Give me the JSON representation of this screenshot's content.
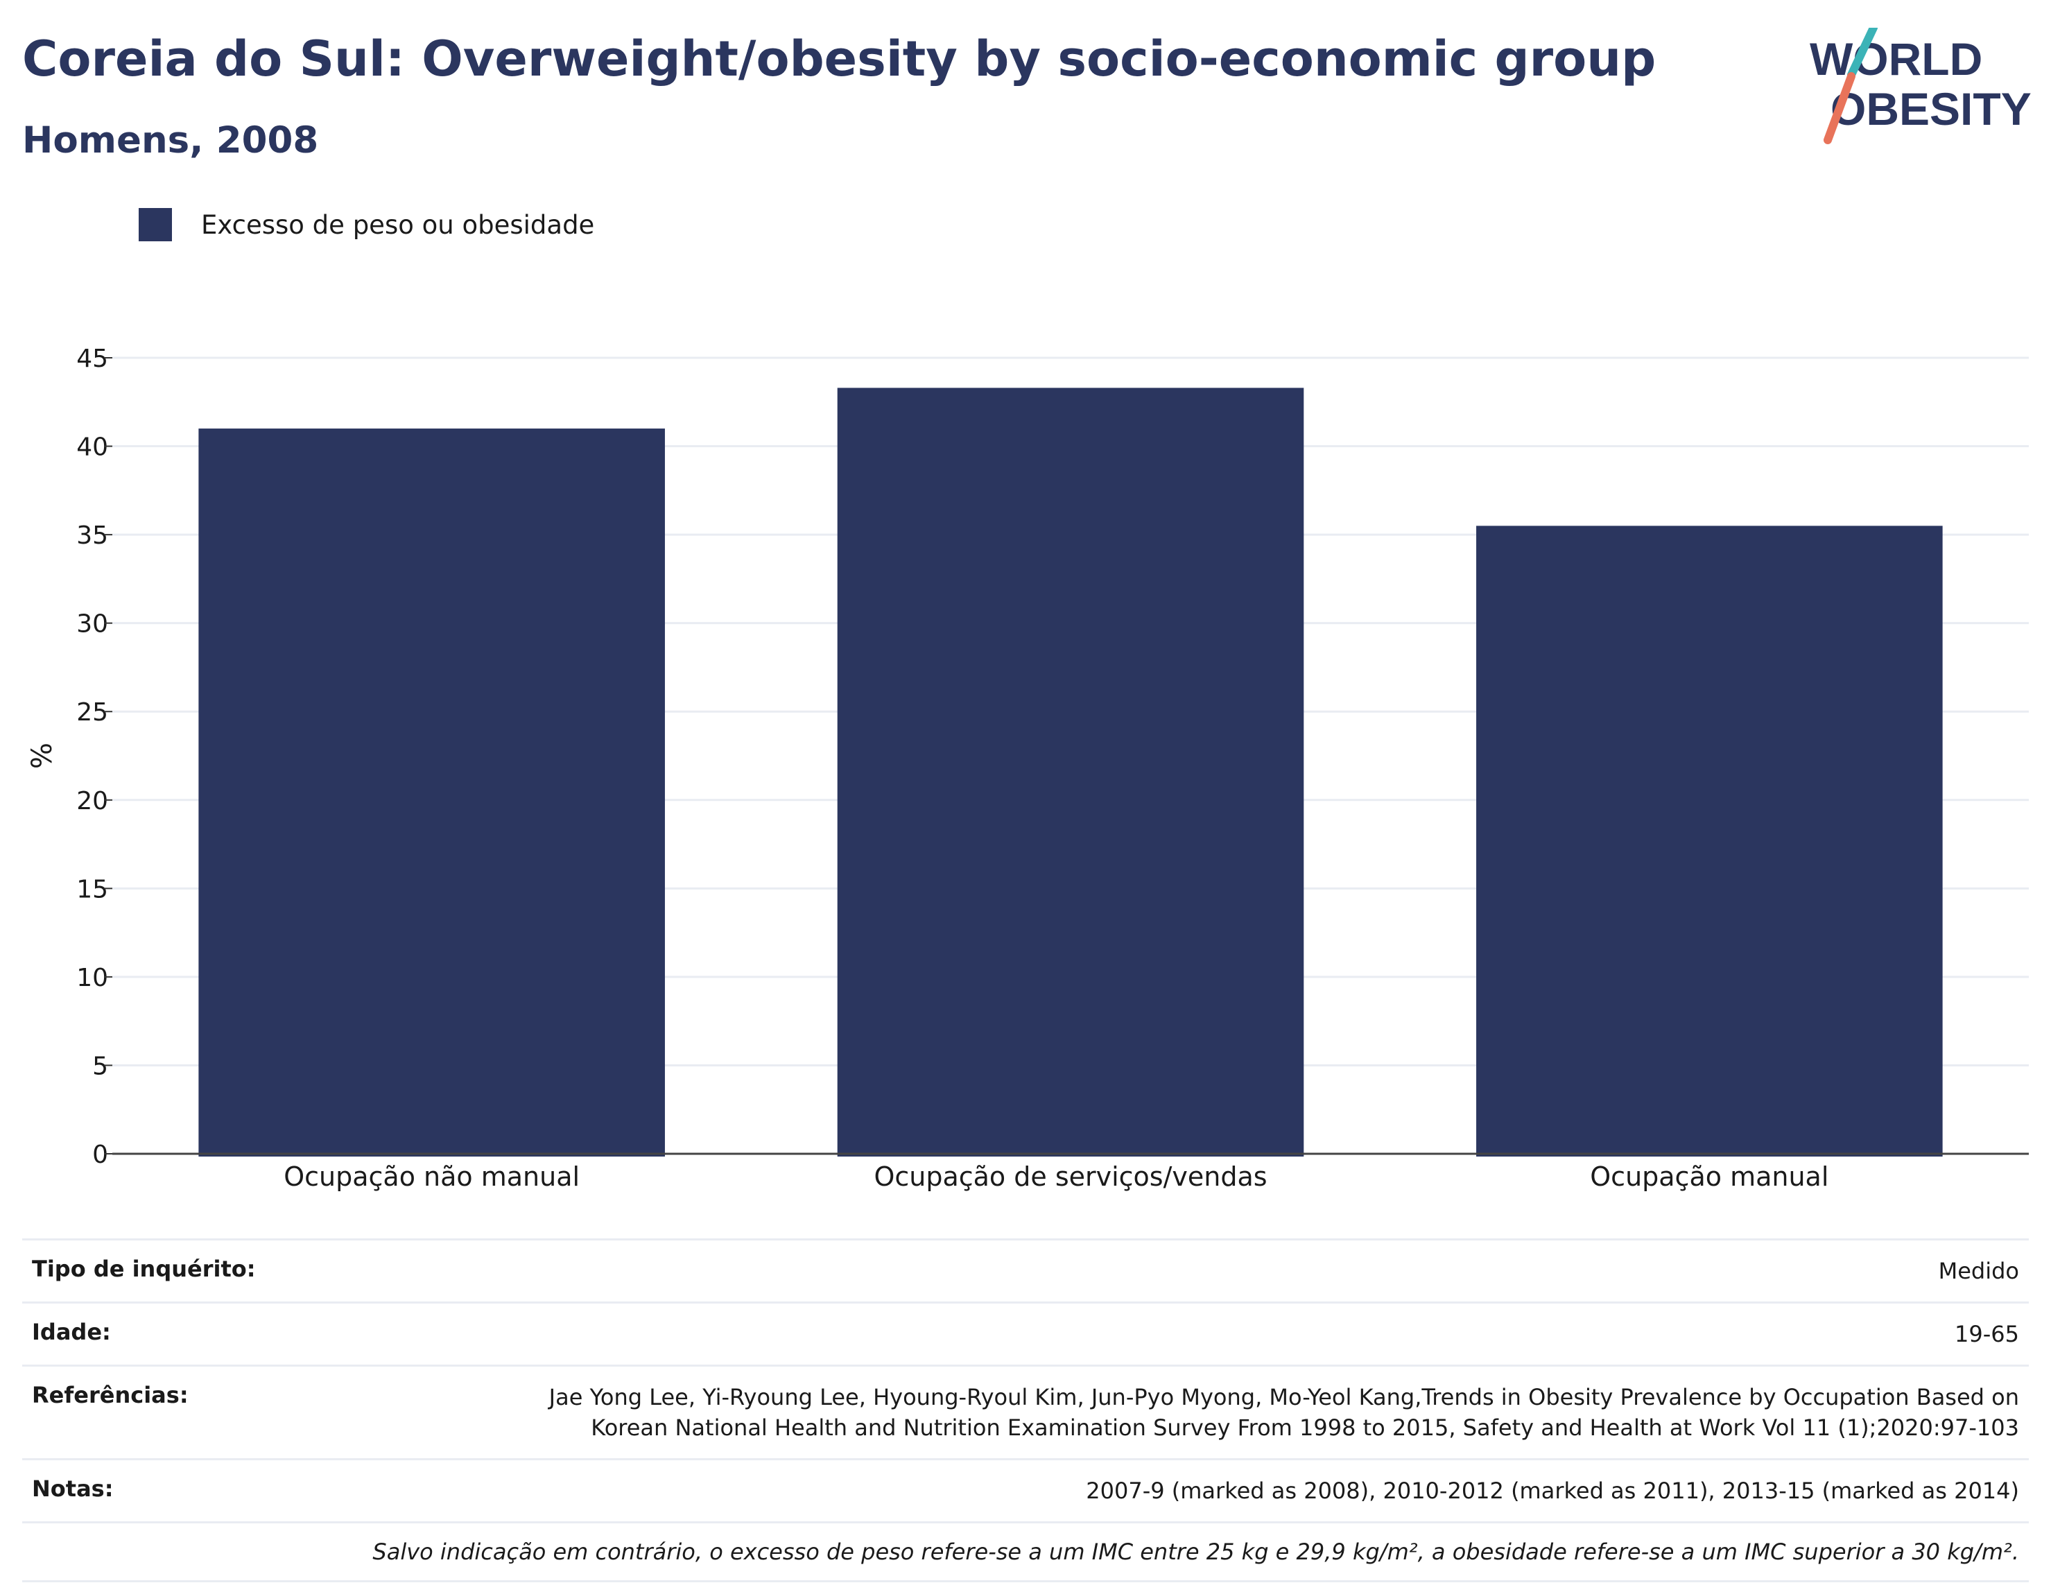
{
  "title": "Coreia do Sul: Overweight/obesity by socio-economic group",
  "subtitle": "Homens, 2008",
  "logo": {
    "line1": "WORLD",
    "line2": "OBESITY",
    "colors": {
      "text": "#2b365f",
      "slash_top": "#3bb3b7",
      "slash_bottom": "#e8735a"
    }
  },
  "legend": {
    "label": "Excesso de peso ou obesidade",
    "color": "#2b365f"
  },
  "chart_data": {
    "type": "bar",
    "categories": [
      "Ocupação não manual",
      "Ocupação de serviços/vendas",
      "Ocupação manual"
    ],
    "series": [
      {
        "name": "Excesso de peso ou obesidade",
        "values": [
          41.0,
          43.3,
          35.5
        ],
        "color": "#2b365f"
      }
    ],
    "ylabel": "%",
    "ylim": [
      0,
      45
    ],
    "yticks": [
      0,
      5,
      10,
      15,
      20,
      25,
      30,
      35,
      40,
      45
    ],
    "grid": true,
    "legend_position": "top-left"
  },
  "meta": {
    "survey_type_label": "Tipo de inquérito:",
    "survey_type_value": "Medido",
    "age_label": "Idade:",
    "age_value": "19-65",
    "references_label": "Referências:",
    "references_line1": "Jae Yong Lee, Yi-Ryoung Lee, Hyoung-Ryoul Kim, Jun-Pyo Myong, Mo-Yeol Kang,Trends in Obesity Prevalence by Occupation Based on",
    "references_line2": "Korean National Health and Nutrition Examination Survey From 1998 to 2015, Safety and Health at Work Vol 11 (1);2020:97-103",
    "notes_label": "Notas:",
    "notes_value": "2007-9 (marked as 2008), 2010-2012 (marked as 2011), 2013-15 (marked as 2014)",
    "footnote": "Salvo indicação em contrário, o excesso de peso refere-se a um IMC entre 25 kg e 29,9 kg/m², a obesidade refere-se a um IMC superior a 30 kg/m²."
  }
}
